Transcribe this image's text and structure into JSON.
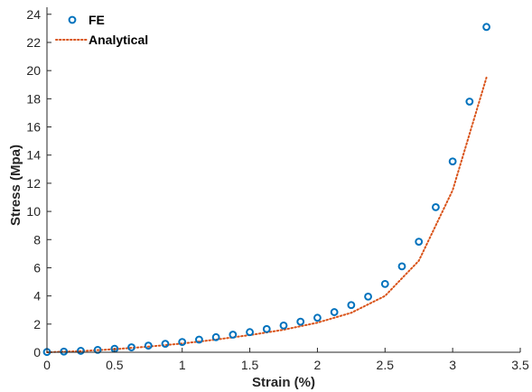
{
  "chart_data": {
    "type": "scatter",
    "xlabel": "Strain (%)",
    "ylabel": "Stress (Mpa)",
    "xlim": [
      0,
      3.5
    ],
    "ylim": [
      0,
      24.5
    ],
    "xticks": [
      0,
      0.5,
      1,
      1.5,
      2,
      2.5,
      3,
      3.5
    ],
    "yticks": [
      0,
      2,
      4,
      6,
      8,
      10,
      12,
      14,
      16,
      18,
      20,
      22,
      24
    ],
    "grid": false,
    "legend_position": "top-left",
    "series": [
      {
        "name": "FE",
        "kind": "marker",
        "marker": "circle-open",
        "color": "#0072BD",
        "x": [
          0,
          0.125,
          0.25,
          0.375,
          0.5,
          0.625,
          0.75,
          0.875,
          1.0,
          1.125,
          1.25,
          1.375,
          1.5,
          1.625,
          1.75,
          1.875,
          2.0,
          2.125,
          2.25,
          2.375,
          2.5,
          2.625,
          2.75,
          2.875,
          3.0,
          3.125,
          3.25
        ],
        "y": [
          0.02,
          0.05,
          0.1,
          0.17,
          0.25,
          0.35,
          0.47,
          0.6,
          0.73,
          0.9,
          1.07,
          1.25,
          1.43,
          1.65,
          1.9,
          2.17,
          2.45,
          2.85,
          3.35,
          3.95,
          4.85,
          6.1,
          7.85,
          10.3,
          13.55,
          17.8,
          23.1
        ]
      },
      {
        "name": "Analytical",
        "kind": "line",
        "style": "dotted",
        "color": "#D95319",
        "x": [
          0,
          0.25,
          0.5,
          0.75,
          1.0,
          1.25,
          1.5,
          1.75,
          2.0,
          2.25,
          2.5,
          2.75,
          3.0,
          3.25
        ],
        "y": [
          0,
          0.08,
          0.22,
          0.4,
          0.62,
          0.9,
          1.22,
          1.6,
          2.1,
          2.8,
          4.0,
          6.5,
          11.5,
          19.5
        ]
      }
    ]
  }
}
